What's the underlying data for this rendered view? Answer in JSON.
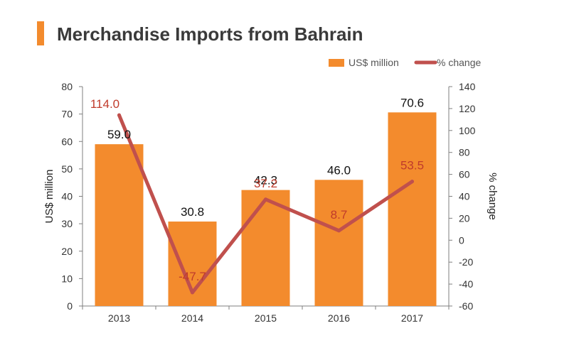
{
  "title": "Merchandise Imports from Bahrain",
  "colors": {
    "accent": "#f38b2d",
    "bar": "#f38b2d",
    "line": "#c0504d",
    "line_label": "#c03b2b"
  },
  "chart_data": {
    "type": "bar",
    "title": "Merchandise Imports from Bahrain",
    "categories": [
      "2013",
      "2014",
      "2015",
      "2016",
      "2017"
    ],
    "series": [
      {
        "name": "US$ million",
        "type": "bar",
        "axis": "left",
        "values": [
          59.0,
          30.8,
          42.3,
          46.0,
          70.6
        ],
        "labels": [
          "59.0",
          "30.8",
          "42.3",
          "46.0",
          "70.6"
        ]
      },
      {
        "name": "% change",
        "type": "line",
        "axis": "right",
        "values": [
          114.0,
          -47.7,
          37.2,
          8.7,
          53.5
        ],
        "labels": [
          "114.0",
          "-47.7",
          "37.2",
          "8.7",
          "53.5"
        ]
      }
    ],
    "ylabel": "US$ million",
    "y2label": "% change",
    "ylim": [
      0,
      80
    ],
    "y2lim": [
      -60,
      140
    ],
    "yticks": [
      "0",
      "10",
      "20",
      "30",
      "40",
      "50",
      "60",
      "70",
      "80"
    ],
    "y2ticks": [
      "-60",
      "-40",
      "-20",
      "0",
      "20",
      "40",
      "60",
      "80",
      "100",
      "120",
      "140"
    ],
    "legend": "top-right",
    "grid": false
  }
}
